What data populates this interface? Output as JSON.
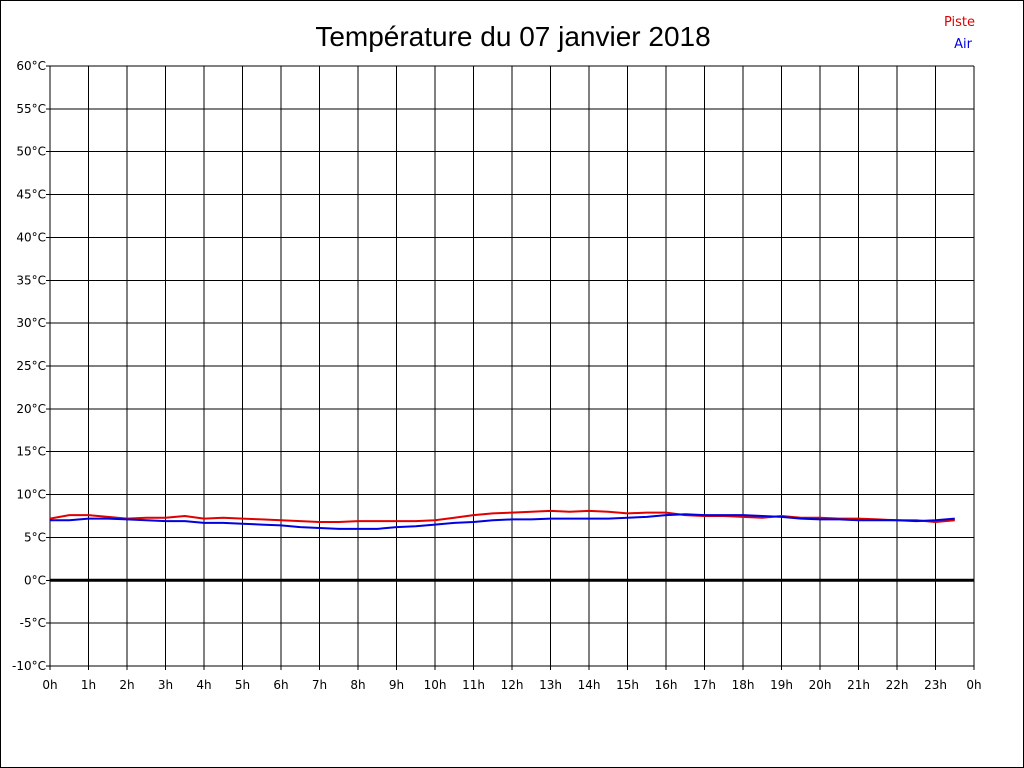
{
  "chart_data": {
    "type": "line",
    "title": "Température du 07 janvier 2018",
    "xlabel": "",
    "ylabel": "",
    "x_ticks": [
      "0h",
      "1h",
      "2h",
      "3h",
      "4h",
      "5h",
      "6h",
      "7h",
      "8h",
      "9h",
      "10h",
      "11h",
      "12h",
      "13h",
      "14h",
      "15h",
      "16h",
      "17h",
      "18h",
      "19h",
      "20h",
      "21h",
      "22h",
      "23h",
      "0h"
    ],
    "y_ticks": [
      "60°C",
      "55°C",
      "50°C",
      "45°C",
      "40°C",
      "35°C",
      "30°C",
      "25°C",
      "20°C",
      "15°C",
      "10°C",
      "5°C",
      "0°C",
      "-5°C",
      "-10°C"
    ],
    "xlim": [
      0,
      24
    ],
    "ylim": [
      -10,
      60
    ],
    "grid": true,
    "legend_position": "top-right",
    "zero_line": 0,
    "series": [
      {
        "name": "Piste",
        "color": "#e00000",
        "x": [
          0,
          0.5,
          1,
          1.5,
          2,
          2.5,
          3,
          3.5,
          4,
          4.5,
          5,
          5.5,
          6,
          6.5,
          7,
          7.5,
          8,
          8.5,
          9,
          9.5,
          10,
          10.5,
          11,
          11.5,
          12,
          12.5,
          13,
          13.5,
          14,
          14.5,
          15,
          15.5,
          16,
          16.5,
          17,
          17.5,
          18,
          18.5,
          19,
          19.5,
          20,
          20.5,
          21,
          21.5,
          22,
          22.5,
          23,
          23.5
        ],
        "values": [
          7.2,
          7.6,
          7.6,
          7.4,
          7.2,
          7.3,
          7.3,
          7.5,
          7.2,
          7.3,
          7.2,
          7.1,
          7.0,
          6.9,
          6.8,
          6.8,
          6.9,
          6.9,
          6.9,
          6.9,
          7.0,
          7.3,
          7.6,
          7.8,
          7.9,
          8.0,
          8.1,
          8.0,
          8.1,
          8.0,
          7.8,
          7.9,
          7.9,
          7.6,
          7.5,
          7.5,
          7.4,
          7.3,
          7.5,
          7.3,
          7.3,
          7.2,
          7.2,
          7.1,
          7.0,
          7.0,
          6.8,
          7.0
        ]
      },
      {
        "name": "Air",
        "color": "#0000e0",
        "x": [
          0,
          0.5,
          1,
          1.5,
          2,
          2.5,
          3,
          3.5,
          4,
          4.5,
          5,
          5.5,
          6,
          6.5,
          7,
          7.5,
          8,
          8.5,
          9,
          9.5,
          10,
          10.5,
          11,
          11.5,
          12,
          12.5,
          13,
          13.5,
          14,
          14.5,
          15,
          15.5,
          16,
          16.5,
          17,
          17.5,
          18,
          18.5,
          19,
          19.5,
          20,
          20.5,
          21,
          21.5,
          22,
          22.5,
          23,
          23.5
        ],
        "values": [
          7.0,
          7.0,
          7.2,
          7.2,
          7.1,
          7.0,
          6.9,
          6.9,
          6.7,
          6.7,
          6.6,
          6.5,
          6.4,
          6.2,
          6.1,
          6.0,
          6.0,
          6.0,
          6.2,
          6.3,
          6.5,
          6.7,
          6.8,
          7.0,
          7.1,
          7.1,
          7.2,
          7.2,
          7.2,
          7.2,
          7.3,
          7.4,
          7.6,
          7.7,
          7.6,
          7.6,
          7.6,
          7.5,
          7.4,
          7.2,
          7.1,
          7.1,
          7.0,
          7.0,
          7.0,
          6.9,
          7.0,
          7.2
        ]
      }
    ]
  }
}
